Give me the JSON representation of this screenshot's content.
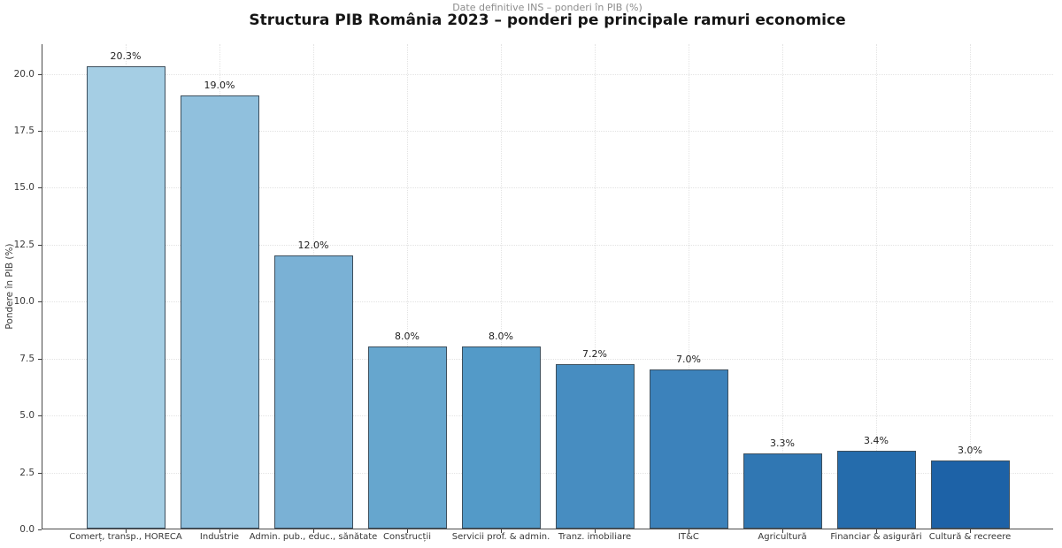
{
  "chart_data": {
    "type": "bar",
    "title": "Structura PIB România 2023 – ponderi pe principale ramuri economice",
    "subtitle": "Date definitive INS – ponderi în PIB (%)",
    "ylabel": "Pondere în PIB (%)",
    "xlabel": "",
    "categories": [
      "Comerț, transp., HORECA",
      "Industrie",
      "Admin. pub., educ., sănătate",
      "Construcții",
      "Servicii prof. & admin.",
      "Tranz. imobiliare",
      "IT&C",
      "Agricultură",
      "Financiar & asigurări",
      "Cultură & recreere"
    ],
    "values": [
      20.3,
      19.0,
      12.0,
      8.0,
      8.0,
      7.2,
      7.0,
      3.3,
      3.4,
      3.0
    ],
    "value_labels": [
      "20.3%",
      "19.0%",
      "12.0%",
      "8.0%",
      "8.0%",
      "7.2%",
      "7.0%",
      "3.3%",
      "3.4%",
      "3.0%"
    ],
    "bar_colors": [
      "#a5cee4",
      "#90c0dd",
      "#7ab1d5",
      "#66a6ce",
      "#539ac8",
      "#478dc1",
      "#3c82bb",
      "#3077b3",
      "#256cac",
      "#1d62a7"
    ],
    "bar_edge_color": "#3d4f5d",
    "ylim": [
      0,
      21.3
    ],
    "yticks": [
      0.0,
      2.5,
      5.0,
      7.5,
      10.0,
      12.5,
      15.0,
      17.5,
      20.0
    ],
    "grid": "both",
    "legend": "none"
  }
}
